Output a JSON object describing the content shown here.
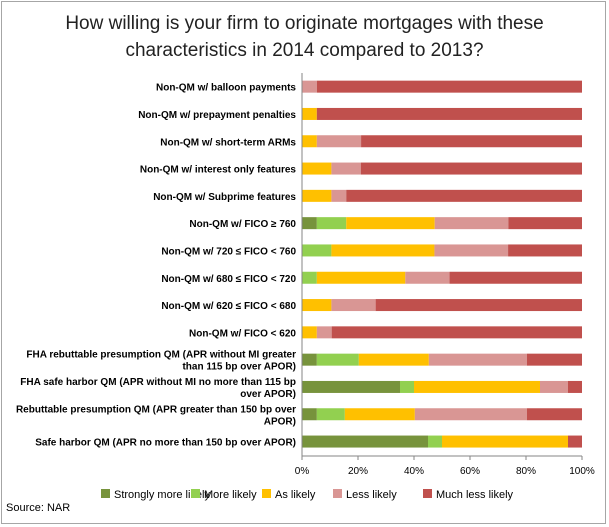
{
  "chart_data": {
    "type": "bar",
    "orientation": "horizontal",
    "stacked": true,
    "percent": true,
    "title": "How willing is your firm to originate mortgages with these characteristics in 2014 compared to 2013?",
    "title_lines": [
      "How willing is your firm to originate mortgages with these",
      "characteristics in 2014 compared to 2013?"
    ],
    "source": "Source: NAR",
    "categories": [
      [
        "Non-QM w/ balloon payments"
      ],
      [
        "Non-QM w/ prepayment penalties"
      ],
      [
        "Non-QM w/ short-term ARMs"
      ],
      [
        "Non-QM w/ interest only features"
      ],
      [
        "Non-QM w/ Subprime features"
      ],
      [
        "Non-QM w/ FICO ≥ 760"
      ],
      [
        "Non-QM w/ 720 ≤ FICO < 760"
      ],
      [
        "Non-QM w/ 680 ≤ FICO < 720"
      ],
      [
        "Non-QM w/ 620 ≤ FICO < 680"
      ],
      [
        "Non-QM w/ FICO < 620"
      ],
      [
        "FHA rebuttable presumption QM (APR without MI greater",
        "than 115 bp over APOR)"
      ],
      [
        "FHA safe harbor QM (APR without MI no more than 115 bp",
        "over APOR)"
      ],
      [
        "Rebuttable presumption QM (APR greater than 150 bp over",
        "APOR)"
      ],
      [
        "Safe harbor QM (APR no more than 150 bp over APOR)"
      ]
    ],
    "series": [
      {
        "name": "Strongly more likely",
        "color": "#77933c",
        "values": [
          0,
          0,
          0,
          0,
          0,
          5.3,
          0,
          0,
          0,
          0,
          5.3,
          35,
          5.3,
          45
        ]
      },
      {
        "name": "More likely",
        "color": "#92d050",
        "values": [
          0,
          0,
          0,
          0,
          0,
          10.5,
          10.5,
          5.3,
          0,
          0,
          15,
          5,
          10,
          5
        ]
      },
      {
        "name": "As likely",
        "color": "#ffc000",
        "values": [
          0,
          5.3,
          5.3,
          10.5,
          10.5,
          31.6,
          36.8,
          31.6,
          10.5,
          5.3,
          25,
          45,
          25,
          45
        ]
      },
      {
        "name": "Less likely",
        "color": "#d99694",
        "values": [
          5.3,
          0,
          15.8,
          10.5,
          5.3,
          26.3,
          26.3,
          15.8,
          15.8,
          5.3,
          35,
          10,
          40,
          0
        ]
      },
      {
        "name": "Much less likely",
        "color": "#c0504d",
        "values": [
          94.7,
          94.7,
          78.9,
          79,
          84.2,
          26.3,
          26.4,
          47.3,
          73.7,
          89.4,
          19.7,
          5,
          19.7,
          5
        ]
      }
    ],
    "xlim": [
      0,
      100
    ],
    "x_ticks": [
      "0%",
      "20%",
      "40%",
      "60%",
      "80%",
      "100%"
    ],
    "grid": false,
    "legend_position": "bottom"
  }
}
